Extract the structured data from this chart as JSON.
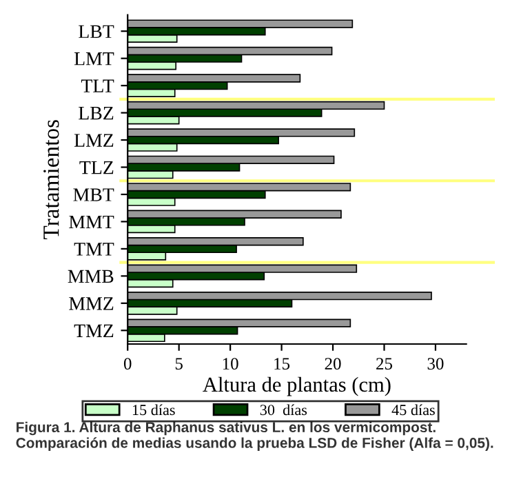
{
  "chart_data": {
    "type": "bar",
    "orientation": "horizontal",
    "xlabel": "Altura de plantas (cm)",
    "ylabel": "Tratamientos",
    "categories": [
      "LBT",
      "LMT",
      "TLT",
      "LBZ",
      "LMZ",
      "TLZ",
      "MBT",
      "MMT",
      "TMT",
      "MMB",
      "MMZ",
      "TMZ"
    ],
    "series": [
      {
        "name": "15 días",
        "color": "#c8ffc8",
        "values": [
          4.8,
          4.7,
          4.6,
          5.0,
          4.8,
          4.4,
          4.6,
          4.6,
          3.7,
          4.4,
          4.8,
          3.6
        ]
      },
      {
        "name": "30  días",
        "color": "#004000",
        "values": [
          13.4,
          11.1,
          9.7,
          18.9,
          14.7,
          10.9,
          13.4,
          11.4,
          10.6,
          13.3,
          16.0,
          10.7
        ]
      },
      {
        "name": "45 días",
        "color": "#999999",
        "values": [
          21.9,
          19.9,
          16.8,
          25.0,
          22.1,
          20.1,
          21.7,
          20.8,
          17.1,
          22.3,
          29.6,
          21.7
        ]
      }
    ],
    "xlim": [
      0,
      33
    ],
    "xticks": [
      0,
      5,
      10,
      15,
      20,
      25,
      30
    ],
    "legend": "bottom",
    "grid": false,
    "annotations": [
      "Figura 1. Altura de Raphanus sativus L. en los vermicompost. Comparación de medias usando la prueba LSD de Fisher (Alfa = 0,05)."
    ]
  }
}
